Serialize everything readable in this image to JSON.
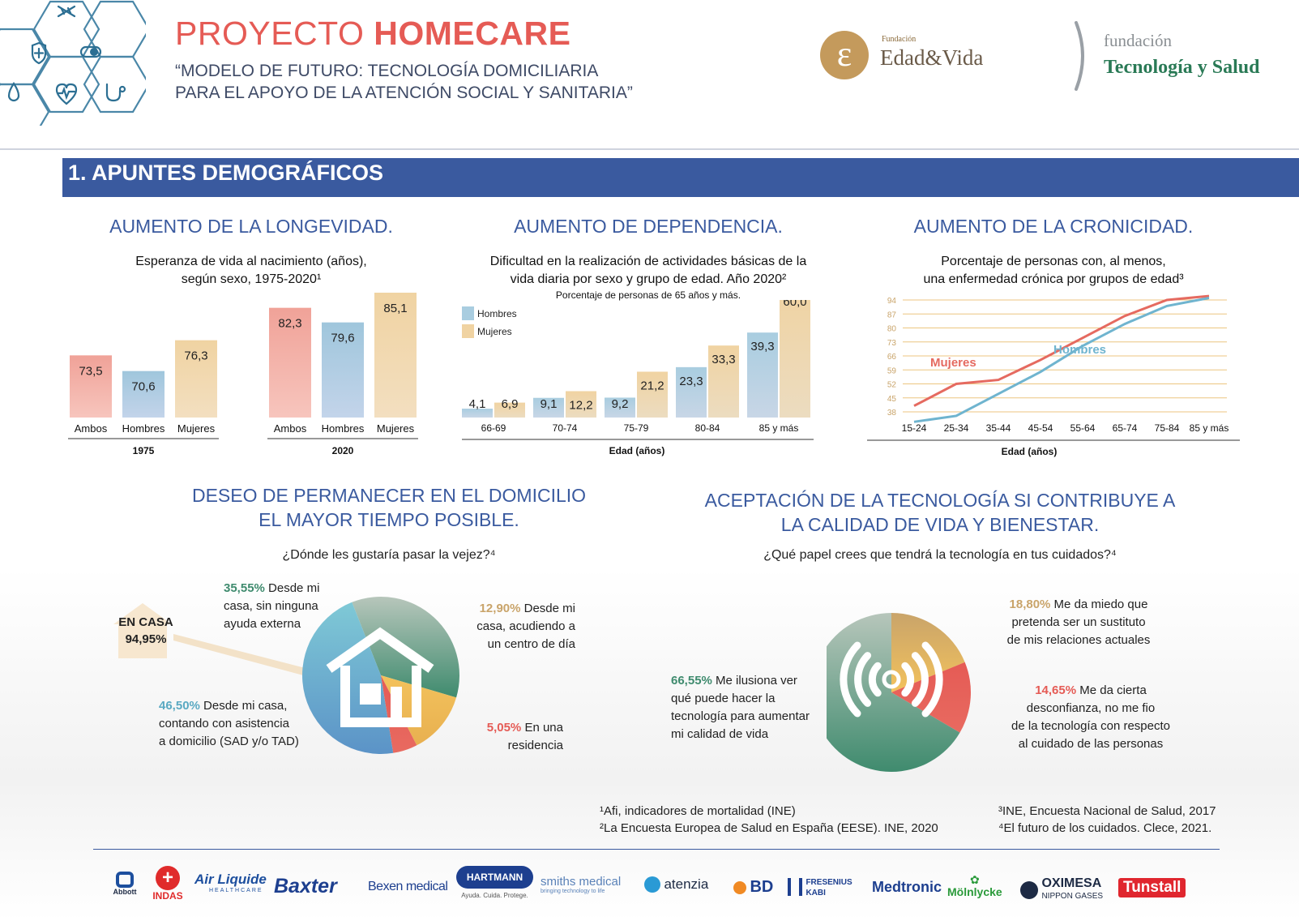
{
  "header": {
    "title_light": "PROYECTO ",
    "title_bold": "HOMECARE",
    "subtitle_line1": "“MODELO DE FUTURO: TECNOLOGÍA DOMICILIARIA",
    "subtitle_line2": "PARA EL APOYO DE LA ATENCIÓN SOCIAL Y SANITARIA”",
    "logo1_small": "Fundación",
    "logo1_main": "Edad&Vida",
    "logo2_small": "fundación",
    "logo2_main": "Tecnología y Salud"
  },
  "section": {
    "title": "1. APUNTES DEMOGRÁFICOS"
  },
  "colors": {
    "ambos": "#f0a298",
    "hombres": "#9fc6dc",
    "mujeres": "#f0d3a2",
    "accent_red": "#e55b55",
    "accent_blue": "#3a5a9f",
    "green": "#3f8b6e"
  },
  "longevidad": {
    "heading": "AUMENTO DE LA LONGEVIDAD.",
    "sub_line1": "Esperanza de vida al nacimiento (años),",
    "sub_line2": "según sexo, 1975-2020¹"
  },
  "dependencia": {
    "heading": "AUMENTO DE DEPENDENCIA.",
    "sub_line1": "Dificultad en la realización de actividades básicas de la",
    "sub_line2": "vida diaria por sexo y grupo de edad. Año 2020²",
    "sub_small": "Porcentaje de personas de 65 años y más."
  },
  "cronicidad": {
    "heading": "AUMENTO DE LA CRONICIDAD.",
    "sub_line1": "Porcentaje de personas con, al menos,",
    "sub_line2": "una enfermedad crónica por grupos de edad³"
  },
  "chart_data": [
    {
      "type": "bar",
      "categories": [
        "Ambos",
        "Hombres",
        "Mujeres"
      ],
      "groups": [
        {
          "label": "1975",
          "values": [
            73.5,
            70.6,
            76.3
          ],
          "labels": [
            "73,5",
            "70,6",
            "76,3"
          ]
        },
        {
          "label": "2020",
          "values": [
            82.3,
            79.6,
            85.1
          ],
          "labels": [
            "82,3",
            "79,6",
            "85,1"
          ]
        }
      ]
    },
    {
      "type": "bar",
      "categories": [
        "66-69",
        "70-74",
        "75-79",
        "80-84",
        "85 y más"
      ],
      "xlabel": "Edad (años)",
      "legend": [
        "Hombres",
        "Mujeres"
      ],
      "legend_position": "top-left",
      "series": [
        {
          "name": "Hombres",
          "values": [
            4.1,
            9.1,
            9.2,
            23.3,
            39.3
          ],
          "labels": [
            "4,1",
            "9,1",
            "9,2",
            "23,3",
            "39,3"
          ]
        },
        {
          "name": "Mujeres",
          "values": [
            6.9,
            12.2,
            21.2,
            33.3,
            60.0
          ],
          "labels": [
            "6,9",
            "12,2",
            "21,2",
            "33,3",
            "60,0"
          ]
        }
      ]
    },
    {
      "type": "line",
      "x": [
        "15-24",
        "25-34",
        "35-44",
        "45-54",
        "55-64",
        "65-74",
        "75-84",
        "85 y más"
      ],
      "xlabel": "Edad (años)",
      "yticks": [
        38,
        45,
        52,
        59,
        66,
        73,
        80,
        87,
        94
      ],
      "ylim": [
        38,
        94
      ],
      "grid": true,
      "series": [
        {
          "name": "Mujeres",
          "values": [
            41,
            52,
            54,
            64,
            75,
            86,
            94,
            96
          ]
        },
        {
          "name": "Hombres",
          "values": [
            33,
            36,
            47,
            58,
            71,
            82,
            91,
            95
          ]
        }
      ]
    },
    {
      "type": "pie",
      "title": "DESEO DE PERMANECER EN EL DOMICILIO EL MAYOR TIEMPO POSIBLE.",
      "slices": [
        {
          "label": "Desde mi casa, sin ninguna ayuda externa",
          "value": 35.55
        },
        {
          "label": "Desde mi casa, acudiendo a un centro de día",
          "value": 12.9
        },
        {
          "label": "En una residencia",
          "value": 5.05
        },
        {
          "label": "Desde mi casa, contando con asistencia a domicilio (SAD y/o TAD)",
          "value": 46.5
        }
      ]
    },
    {
      "type": "pie",
      "title": "ACEPTACIÓN DE LA TECNOLOGÍA SI CONTRIBUYE A LA CALIDAD DE VIDA Y BIENESTAR.",
      "slices": [
        {
          "label": "Me da miedo que pretenda ser un sustituto de mis relaciones actuales",
          "value": 18.8
        },
        {
          "label": "Me da cierta desconfianza, no me fío de la tecnología con respecto al cuidado de las personas",
          "value": 14.65
        },
        {
          "label": "Me ilusiona ver qué puede hacer la tecnología para aumentar mi calidad de vida",
          "value": 66.55
        }
      ]
    }
  ],
  "domicilio": {
    "heading_line1": "DESEO DE PERMANECER EN EL DOMICILIO",
    "heading_line2": "EL MAYOR TIEMPO POSIBLE.",
    "question": "¿Dónde les gustaría pasar la vejez?⁴",
    "en_casa": "EN CASA",
    "en_casa_pct": "94,95%",
    "lab1_pct": "35,55%",
    "lab1_a": " Desde mi",
    "lab1_b": "casa, sin ninguna",
    "lab1_c": "ayuda externa",
    "lab2_pct": "12,90%",
    "lab2_a": "  Desde mi",
    "lab2_b": "casa, acudiendo a",
    "lab2_c": "un centro de día",
    "lab3_pct": "46,50%",
    "lab3_a": " Desde mi casa,",
    "lab3_b": "contando  con asistencia",
    "lab3_c": "a domicilio (SAD y/o TAD)",
    "lab4_pct": "5,05%",
    "lab4_a": "  En una",
    "lab4_b": "residencia"
  },
  "tecnologia": {
    "heading_line1": "ACEPTACIÓN DE LA TECNOLOGÍA SI CONTRIBUYE A",
    "heading_line2": "LA CALIDAD DE VIDA Y BIENESTAR.",
    "question": "¿Qué papel crees que tendrá la tecnología en tus cuidados?⁴",
    "lab1_pct": "18,80%",
    "lab1_a": "  Me da miedo que",
    "lab1_b": "pretenda ser un sustituto",
    "lab1_c": "de mis relaciones actuales",
    "lab2_pct": "14,65%",
    "lab2_a": "  Me da cierta",
    "lab2_b": "desconfianza, no me fio",
    "lab2_c": "de la tecnología con respecto",
    "lab2_d": "al cuidado de las personas",
    "lab3_pct": "66,55%",
    "lab3_a": " Me ilusiona ver",
    "lab3_b": "qué puede hacer la",
    "lab3_c": "tecnología para aumentar",
    "lab3_d": "mi calidad de vida"
  },
  "footnotes": {
    "f1": "¹Afi, indicadores de mortalidad (INE)",
    "f2": "²La Encuesta Europea de Salud en España (EESE). INE, 2020",
    "f3": "³INE, Encuesta Nacional de Salud, 2017",
    "f4": "⁴El futuro de los cuidados. Clece, 2021."
  },
  "sponsors": {
    "abbott": "Abbott",
    "indas": "INDAS",
    "airliquide": "Air Liquide",
    "airliquide_sub": "HEALTHCARE",
    "baxter": "Baxter",
    "bexen": "Bexen medical",
    "hartmann": "HARTMANN",
    "hartmann_sub": "Ayuda. Cuida. Protege.",
    "smiths": "smiths medical",
    "smiths_sub": "bringing technology to life",
    "atenzia": "atenzia",
    "bd": "BD",
    "fresenius": "FRESENIUS",
    "fresenius_sub": "KABI",
    "medtronic": "Medtronic",
    "molnlycke": "Mölnlycke",
    "oximesa": "OXIMESA",
    "oximesa_sub": "NIPPON GASES",
    "tunstall": "Tunstall"
  }
}
